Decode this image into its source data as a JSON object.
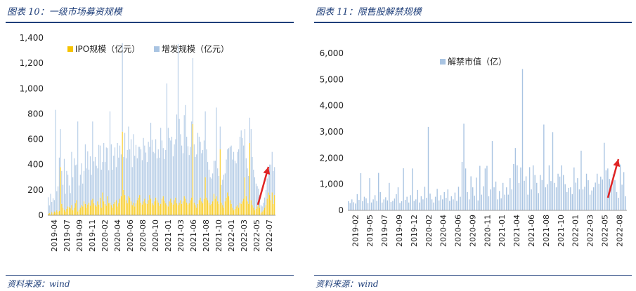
{
  "left": {
    "title": "图表 10：一级市场募资规模",
    "source": "资料来源：wind"
  },
  "right": {
    "title": "图表 11：限售股解禁规模",
    "source": "资料来源：wind"
  },
  "colors": {
    "title": "#1f3f7a",
    "ipo": "#f6c300",
    "additional": "#a9c4e2",
    "unlock": "#a9c4e2",
    "arrow": "#e02424"
  },
  "chart_data": [
    {
      "type": "bar",
      "title": "",
      "ylim": [
        0,
        1400
      ],
      "yticks": [
        "0",
        "200",
        "400",
        "600",
        "800",
        "1,000",
        "1,200",
        "1,400"
      ],
      "xticks": [
        "2019-04",
        "2019-07",
        "2019-09",
        "2019-11",
        "2020-02",
        "2020-04",
        "2020-06",
        "2020-08",
        "2020-10",
        "2021-01",
        "2021-03",
        "2021-06",
        "2021-08",
        "2021-10",
        "2022-01",
        "2022-03",
        "2022-05",
        "2022-07"
      ],
      "legend_position": "top",
      "period": "weekly",
      "series": [
        {
          "name": "IPO规模（亿元）",
          "values": [
            12,
            18,
            9,
            25,
            14,
            30,
            22,
            40,
            28,
            35,
            380,
            90,
            60,
            45,
            30,
            50,
            70,
            65,
            55,
            80,
            40,
            60,
            95,
            120,
            30,
            45,
            60,
            80,
            70,
            110,
            90,
            60,
            85,
            100,
            75,
            120,
            130,
            95,
            80,
            70,
            110,
            85,
            140,
            60,
            180,
            110,
            90,
            75,
            150,
            95,
            100,
            80,
            60,
            90,
            105,
            120,
            70,
            95,
            130,
            150,
            660,
            200,
            160,
            120,
            95,
            150,
            140,
            110,
            80,
            100,
            70,
            95,
            120,
            140,
            160,
            100,
            85,
            110,
            130,
            95,
            90,
            120,
            160,
            130,
            95,
            80,
            110,
            140,
            120,
            100,
            75,
            90,
            130,
            150,
            115,
            95,
            80,
            70,
            110,
            130,
            100,
            85,
            120,
            140,
            95,
            80,
            100,
            120,
            90,
            110,
            150,
            130,
            100,
            85,
            95,
            120,
            140,
            720,
            100,
            80,
            60,
            90,
            120,
            140,
            110,
            95,
            130,
            300,
            140,
            120,
            100,
            80,
            90,
            110,
            170,
            130,
            150,
            110,
            90,
            520,
            100,
            80,
            60,
            110,
            140,
            180,
            150,
            120,
            90,
            60,
            40,
            50,
            70,
            80,
            60,
            100,
            90,
            110,
            130,
            300,
            150,
            110,
            90,
            570,
            120,
            80,
            60,
            40,
            50,
            70,
            90,
            60,
            20,
            30,
            40,
            60,
            80,
            130,
            180,
            160,
            120,
            180,
            90,
            160
          ]
        },
        {
          "name": "增发规模（亿元）",
          "values": [
            130,
            60,
            160,
            80,
            120,
            90,
            810,
            150,
            200,
            420,
            300,
            260,
            180,
            400,
            140,
            300,
            250,
            170,
            120,
            420,
            260,
            390,
            300,
            280,
            710,
            190,
            260,
            330,
            180,
            240,
            470,
            310,
            420,
            260,
            390,
            200,
            610,
            330,
            380,
            320,
            260,
            470,
            410,
            300,
            240,
            460,
            330,
            460,
            380,
            260,
            720,
            480,
            300,
            380,
            430,
            260,
            500,
            360,
            420,
            330,
            700,
            260,
            490,
            330,
            420,
            550,
            380,
            490,
            300,
            540,
            400,
            460,
            330,
            400,
            380,
            420,
            350,
            500,
            420,
            400,
            330,
            460,
            380,
            600,
            500,
            420,
            380,
            460,
            330,
            420,
            380,
            600,
            460,
            380,
            330,
            420,
            960,
            620,
            500,
            460,
            520,
            380,
            440,
            460,
            700,
            1270,
            660,
            520,
            460,
            380,
            640,
            740,
            520,
            460,
            380,
            420,
            600,
            520,
            460,
            380,
            420,
            560,
            500,
            440,
            380,
            420,
            460,
            520,
            380,
            300,
            260,
            220,
            200,
            220,
            260,
            300,
            700,
            260,
            220,
            180,
            140,
            200,
            260,
            220,
            300,
            340,
            380,
            420,
            460,
            380,
            460,
            380,
            340,
            420,
            460,
            520,
            580,
            500,
            420,
            380,
            300,
            260,
            220,
            200,
            560,
            380,
            300,
            260,
            200,
            160,
            120,
            100,
            60,
            40,
            60,
            80,
            120,
            160,
            200,
            240,
            280,
            320,
            260,
            220,
            300
          ]
        }
      ]
    },
    {
      "type": "bar",
      "title": "",
      "ylim": [
        0,
        6000
      ],
      "yticks": [
        "0",
        "1,000",
        "2,000",
        "3,000",
        "4,000",
        "5,000",
        "6,000"
      ],
      "xticks": [
        "2019-02",
        "2019-05",
        "2019-07",
        "2019-09",
        "2019-12",
        "2020-02",
        "2020-04",
        "2020-06",
        "2020-09",
        "2020-11",
        "2021-01",
        "2021-04",
        "2021-06",
        "2021-08",
        "2021-10",
        "2022-01",
        "2022-03",
        "2022-05",
        "2022-08"
      ],
      "legend_position": "top",
      "period": "weekly",
      "series": [
        {
          "name": "解禁市值（亿）",
          "values": [
            350,
            280,
            420,
            310,
            260,
            620,
            400,
            1420,
            350,
            520,
            460,
            280,
            1230,
            300,
            420,
            580,
            360,
            1430,
            700,
            300,
            420,
            500,
            380,
            1050,
            320,
            360,
            450,
            620,
            880,
            280,
            350,
            1610,
            400,
            520,
            300,
            580,
            1600,
            360,
            420,
            780,
            300,
            540,
            420,
            900,
            480,
            3190,
            640,
            420,
            300,
            520,
            820,
            380,
            580,
            420,
            700,
            480,
            800,
            360,
            540,
            420,
            680,
            360,
            900,
            520,
            1850,
            3310,
            1600,
            700,
            420,
            1300,
            880,
            560,
            1250,
            380,
            1700,
            600,
            920,
            1600,
            1700,
            540,
            800,
            2650,
            880,
            1100,
            420,
            740,
            460,
            1050,
            600,
            880,
            600,
            1230,
            800,
            1770,
            2380,
            1720,
            1050,
            1640,
            5400,
            1130,
            1300,
            600,
            1650,
            800,
            1720,
            1350,
            1050,
            660,
            1350,
            1160,
            3280,
            880,
            1000,
            1720,
            1120,
            2990,
            1050,
            880,
            1400,
            1290,
            1720,
            1350,
            1000,
            700,
            860,
            880,
            620,
            1640,
            1060,
            1230,
            800,
            2280,
            800,
            900,
            1400,
            1150,
            600,
            760,
            880,
            1060,
            1400,
            1020,
            1290,
            1180,
            2580,
            1530,
            1600,
            1200,
            880,
            1380,
            1150,
            700,
            480,
            1750,
            980,
            1460,
            540
          ]
        }
      ]
    }
  ]
}
